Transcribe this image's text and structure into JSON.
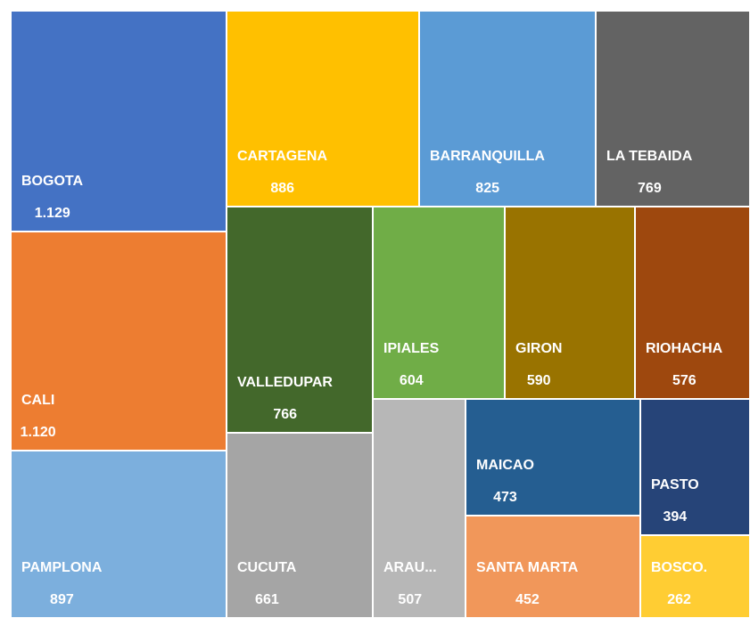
{
  "chart_data": {
    "type": "treemap",
    "categories": [
      "BOGOTA",
      "CALI",
      "PAMPLONA",
      "CARTAGENA",
      "BARRANQUILLA",
      "LA TEBAIDA",
      "VALLEDUPAR",
      "CUCUTA",
      "IPIALES",
      "GIRON",
      "RIOHACHA",
      "ARAU...",
      "MAICAO",
      "SANTA MARTA",
      "PASTO",
      "BOSCO."
    ],
    "values": [
      1129,
      1120,
      897,
      886,
      825,
      769,
      766,
      661,
      604,
      590,
      576,
      507,
      473,
      452,
      394,
      262
    ],
    "value_labels": [
      "1.129",
      "1.120",
      "897",
      "886",
      "825",
      "769",
      "766",
      "661",
      "604",
      "590",
      "576",
      "507",
      "473",
      "452",
      "394",
      "262"
    ],
    "colors": [
      "#4472c4",
      "#ed7d31",
      "#7cafdd",
      "#ffc000",
      "#5b9bd5",
      "#636363",
      "#43682b",
      "#a5a5a5",
      "#70ad47",
      "#997300",
      "#9e480e",
      "#b7b7b7",
      "#255e91",
      "#f1975a",
      "#264478",
      "#ffcd33"
    ]
  }
}
